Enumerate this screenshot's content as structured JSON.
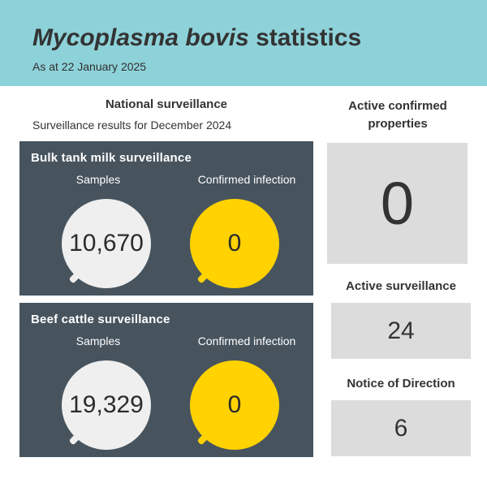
{
  "header": {
    "title_italic": "Mycoplasma bovis",
    "title_rest": " statistics",
    "date": "As at 22 January 2025"
  },
  "national": {
    "title": "National surveillance",
    "subtitle": "Surveillance results for December 2024"
  },
  "panels": [
    {
      "title": "Bulk tank milk surveillance",
      "samples_label": "Samples",
      "samples_value": "10,670",
      "confirmed_label": "Confirmed infection",
      "confirmed_value": "0"
    },
    {
      "title": "Beef cattle surveillance",
      "samples_label": "Samples",
      "samples_value": "19,329",
      "confirmed_label": "Confirmed infection",
      "confirmed_value": "0"
    }
  ],
  "right": {
    "active_confirmed": {
      "label": "Active confirmed properties",
      "value": "0"
    },
    "active_surveillance": {
      "label": "Active surveillance",
      "value": "24"
    },
    "notice_of_direction": {
      "label": "Notice of Direction",
      "value": "6"
    }
  },
  "colors": {
    "header_bg": "#8ed2d9",
    "panel_bg": "#47545e",
    "samples_bubble": "#efefef",
    "confirmed_bubble": "#ffd200",
    "stat_box": "#dcdcdc"
  }
}
